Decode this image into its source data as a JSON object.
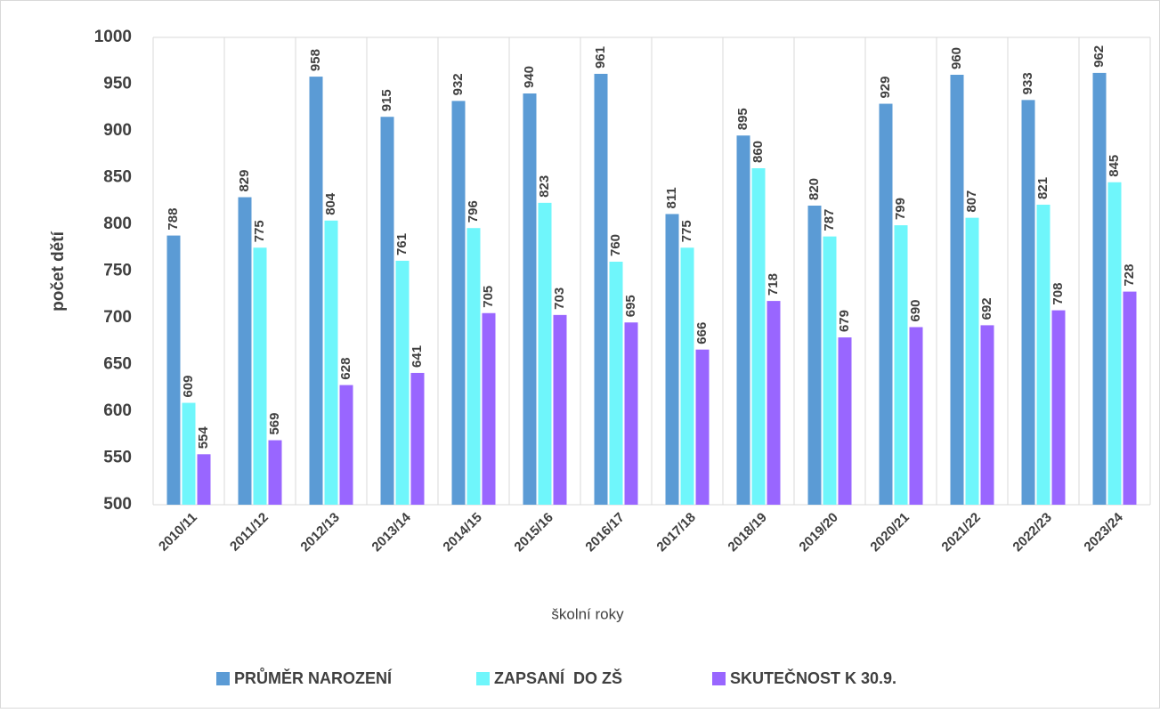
{
  "chart_data": {
    "type": "bar",
    "x_label": "školní roky",
    "y_label": "počet dětí",
    "categories": [
      "2010/11",
      "2011/12",
      "2012/13",
      "2013/14",
      "2014/15",
      "2015/16",
      "2016/17",
      "2017/18",
      "2018/19",
      "2019/20",
      "2020/21",
      "2021/22",
      "2022/23",
      "2023/24"
    ],
    "series": [
      {
        "name": "PRŮMĚR NAROZENÍ",
        "color": "#5b9bd5",
        "values": [
          788,
          829,
          958,
          915,
          932,
          940,
          961,
          811,
          895,
          820,
          929,
          960,
          933,
          962
        ]
      },
      {
        "name": "ZAPSANÍ  DO ZŠ",
        "color": "#6ff6fb",
        "values": [
          609,
          775,
          804,
          761,
          796,
          823,
          760,
          775,
          860,
          787,
          799,
          807,
          821,
          845
        ]
      },
      {
        "name": "SKUTEČNOST K 30.9.",
        "color": "#9966ff",
        "values": [
          554,
          569,
          628,
          641,
          705,
          703,
          695,
          666,
          718,
          679,
          690,
          692,
          708,
          728
        ]
      }
    ],
    "ylim": [
      500,
      1000
    ],
    "yticks": [
      500,
      550,
      600,
      650,
      700,
      750,
      800,
      850,
      900,
      950,
      1000
    ],
    "legend": "bottom"
  }
}
